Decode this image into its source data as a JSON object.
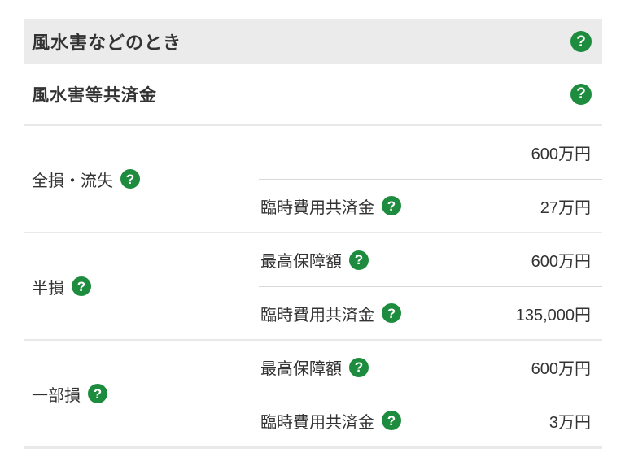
{
  "colors": {
    "accent_green": "#1E8C3E",
    "header_bg": "#EBEBEB",
    "text": "#333333",
    "divider": "#E9E9E9",
    "sub_divider": "#D9D9D9"
  },
  "icons": {
    "help_glyph": "?"
  },
  "header": {
    "title": "風水害などのとき"
  },
  "subheader": {
    "title": "風水害等共済金"
  },
  "table": {
    "rows": [
      {
        "label": "全損・流失",
        "sub_rows": [
          {
            "label": "",
            "value": "600万円"
          },
          {
            "label": "臨時費用共済金",
            "value": "27万円"
          }
        ]
      },
      {
        "label": "半損",
        "sub_rows": [
          {
            "label": "最高保障額",
            "value": "600万円"
          },
          {
            "label": "臨時費用共済金",
            "value": "135,000円"
          }
        ]
      },
      {
        "label": "一部損",
        "sub_rows": [
          {
            "label": "最高保障額",
            "value": "600万円"
          },
          {
            "label": "臨時費用共済金",
            "value": "3万円"
          }
        ]
      }
    ]
  }
}
